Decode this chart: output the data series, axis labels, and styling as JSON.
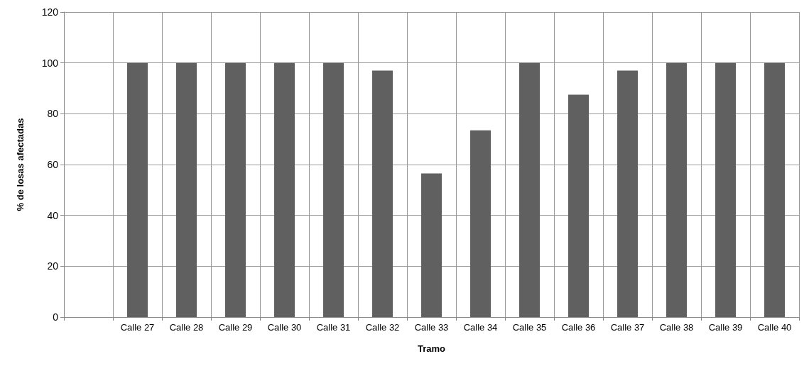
{
  "chart_data": {
    "type": "bar",
    "xlabel": "Tramo",
    "ylabel": "% de losas afectadas",
    "categories": [
      null,
      "Calle 27",
      "Calle 28",
      "Calle 29",
      "Calle 30",
      "Calle 31",
      "Calle 32",
      "Calle 33",
      "Calle 34",
      "Calle 35",
      "Calle 36",
      "Calle 37",
      "Calle 38",
      "Calle 39",
      "Calle 40"
    ],
    "values": [
      null,
      100,
      100,
      100,
      100,
      100,
      97,
      56.5,
      73.5,
      100,
      87.5,
      97,
      100,
      100,
      100
    ],
    "color": "#606060",
    "ylim": [
      0,
      120
    ],
    "yticks": [
      0,
      20,
      40,
      60,
      80,
      100,
      120
    ],
    "grid": true
  }
}
